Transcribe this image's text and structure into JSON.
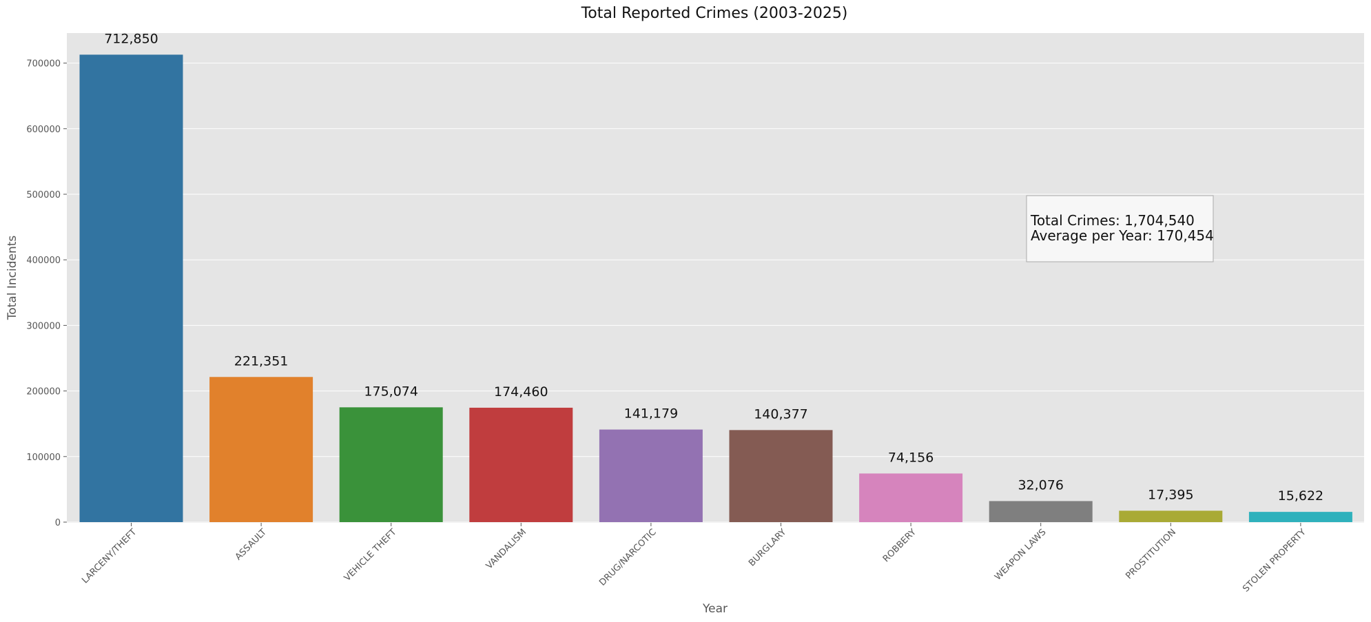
{
  "chart_data": {
    "type": "bar",
    "title": "Total Reported Crimes (2003-2025)",
    "xlabel": "Year",
    "ylabel": "Total Incidents",
    "ylim": [
      0,
      750000
    ],
    "yticks": [
      0,
      100000,
      200000,
      300000,
      400000,
      500000,
      600000,
      700000
    ],
    "grid": true,
    "categories": [
      "LARCENY/THEFT",
      "ASSAULT",
      "VEHICLE THEFT",
      "VANDALISM",
      "DRUG/NARCOTIC",
      "BURGLARY",
      "ROBBERY",
      "WEAPON LAWS",
      "PROSTITUTION",
      "STOLEN PROPERTY"
    ],
    "values": [
      712850,
      221351,
      175074,
      174460,
      141179,
      140377,
      74156,
      32076,
      17395,
      15622
    ],
    "value_labels": [
      "712,850",
      "221,351",
      "175,074",
      "174,460",
      "141,179",
      "140,377",
      "74,156",
      "32,076",
      "17,395",
      "15,622"
    ],
    "colors": [
      "#3274a1",
      "#e1812c",
      "#3a923a",
      "#c03d3e",
      "#9372b2",
      "#845b53",
      "#d684bd",
      "#7f7f7f",
      "#a9aa35",
      "#2fb1bc"
    ],
    "annotation": {
      "lines": [
        "Total Crimes: 1,704,540",
        "Average per Year: 170,454"
      ],
      "position": "upper-right"
    },
    "style": {
      "plot_background": "#e5e5e5",
      "grid_color": "#ffffff"
    }
  }
}
